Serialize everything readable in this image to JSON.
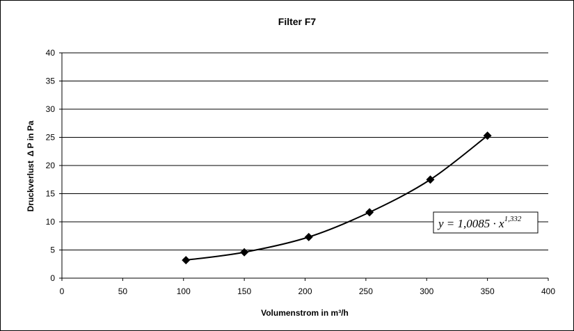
{
  "chart_data": {
    "type": "scatter",
    "title": "Filter F7",
    "xlabel": "Volumenstrom in m³/h",
    "ylabel_text": "Druckverlust",
    "ylabel_delta": "Δ",
    "ylabel_rest": "P in Pa",
    "xlim": [
      0,
      400
    ],
    "ylim": [
      0,
      40
    ],
    "xticks": [
      0,
      50,
      100,
      150,
      200,
      250,
      300,
      350,
      400
    ],
    "yticks": [
      0,
      5,
      10,
      15,
      20,
      25,
      30,
      35,
      40
    ],
    "grid": "horizontal",
    "series": [
      {
        "marker": "diamond",
        "color": "#000000",
        "points": [
          {
            "x": 102,
            "y": 3.2
          },
          {
            "x": 150,
            "y": 4.6
          },
          {
            "x": 203,
            "y": 7.3
          },
          {
            "x": 253,
            "y": 11.7
          },
          {
            "x": 303,
            "y": 17.5
          },
          {
            "x": 350,
            "y": 25.3
          }
        ]
      }
    ],
    "trendline": {
      "equation_prefix": "y = 1,0085 · x",
      "equation_exponent": "1,332"
    }
  }
}
